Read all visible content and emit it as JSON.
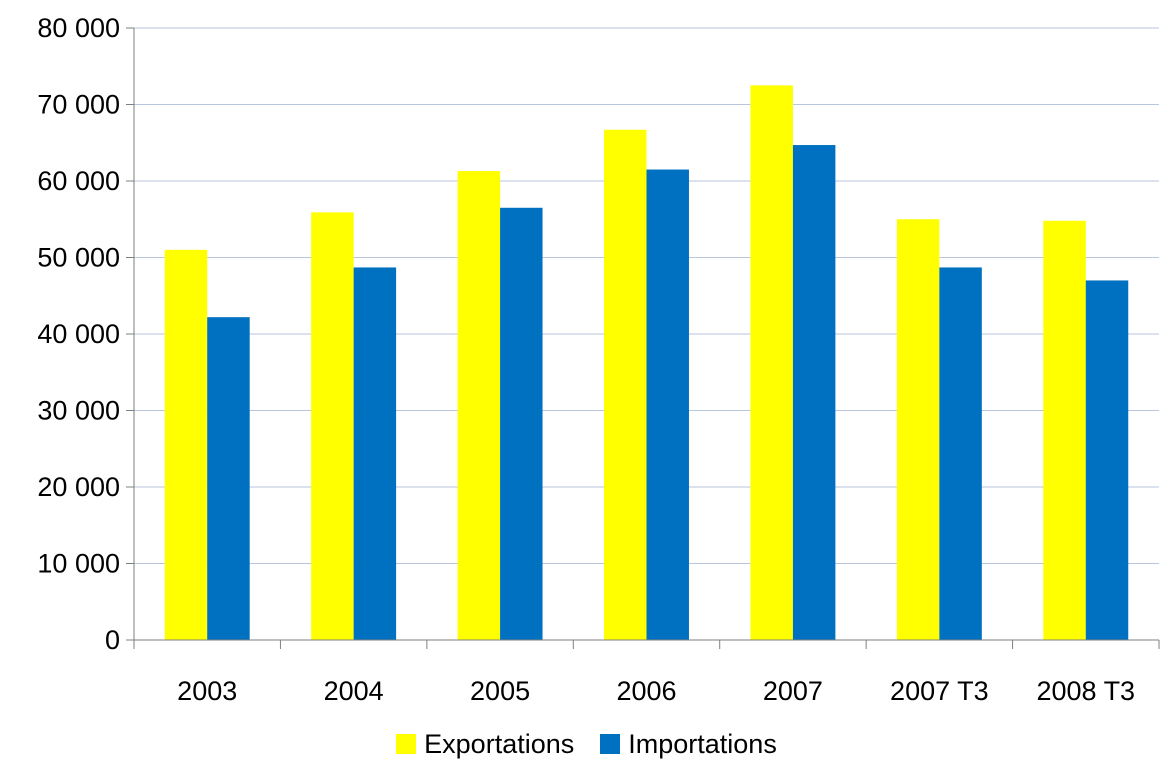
{
  "chart_data": {
    "type": "bar",
    "categories": [
      "2003",
      "2004",
      "2005",
      "2006",
      "2007",
      "2007 T3",
      "2008 T3"
    ],
    "series": [
      {
        "name": "Exportations",
        "color": "#FFFF00",
        "values": [
          51000,
          55900,
          61300,
          66700,
          72500,
          55000,
          54800
        ]
      },
      {
        "name": "Importations",
        "color": "#0070C0",
        "values": [
          42200,
          48700,
          56500,
          61500,
          64700,
          48700,
          47000
        ]
      }
    ],
    "ylim": [
      0,
      80000
    ],
    "yticks": [
      0,
      10000,
      20000,
      30000,
      40000,
      50000,
      60000,
      70000,
      80000
    ],
    "ytick_labels": [
      "0",
      "10 000",
      "20 000",
      "30 000",
      "40 000",
      "50 000",
      "60 000",
      "70 000",
      "80 000"
    ],
    "grid": true,
    "gridline_color": "#B7C6DE",
    "legend_position": "bottom",
    "title": "",
    "xlabel": "",
    "ylabel": ""
  }
}
